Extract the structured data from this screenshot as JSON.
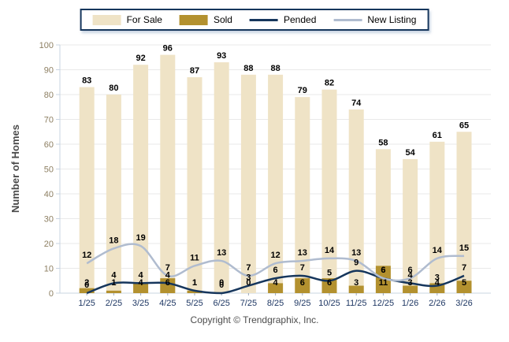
{
  "legend": {
    "items": [
      {
        "label": "For Sale",
        "swatch": "bar",
        "color_key": "for_sale"
      },
      {
        "label": "Sold",
        "swatch": "bar",
        "color_key": "sold"
      },
      {
        "label": "Pended",
        "swatch": "line",
        "color_key": "pended"
      },
      {
        "label": "New Listing",
        "swatch": "line",
        "color_key": "new_listing"
      }
    ]
  },
  "ylabel": "Number of Homes",
  "footer": {
    "copyright": "Copyright © Trendgraphix, Inc."
  },
  "colors": {
    "for_sale": "#efe3c6",
    "sold": "#b3912f",
    "pended": "#16365c",
    "new_listing": "#b0bccf",
    "gridline": "#e9e9e9",
    "axis_line": "#c9d4e2",
    "tick": "#9aa7bb",
    "y_tick_label": "#8d7f62",
    "x_tick_label": "#1f3864",
    "value_label": "#000000"
  },
  "chart_data": {
    "type": "bar",
    "title": "",
    "xlabel": "",
    "ylabel": "Number of Homes",
    "ylim": [
      0,
      100
    ],
    "yticks": [
      0,
      10,
      20,
      30,
      40,
      50,
      60,
      70,
      80,
      90,
      100
    ],
    "grid": true,
    "legend_position": "top",
    "categories": [
      "1/25",
      "2/25",
      "3/25",
      "4/25",
      "5/25",
      "6/25",
      "7/25",
      "8/25",
      "9/25",
      "10/25",
      "11/25",
      "12/25",
      "1/26",
      "2/26",
      "3/26"
    ],
    "series": [
      {
        "name": "For Sale",
        "type": "bar",
        "color_key": "for_sale",
        "values": [
          83,
          80,
          92,
          96,
          87,
          93,
          88,
          88,
          79,
          82,
          74,
          58,
          54,
          61,
          65
        ]
      },
      {
        "name": "Sold",
        "type": "bar",
        "color_key": "sold",
        "values": [
          2,
          1,
          4,
          6,
          1,
          0,
          0,
          4,
          6,
          6,
          3,
          11,
          3,
          4,
          5
        ]
      },
      {
        "name": "Pended",
        "type": "line",
        "color_key": "pended",
        "values": [
          0,
          4,
          4,
          4,
          1,
          0,
          3,
          6,
          7,
          5,
          9,
          6,
          4,
          3,
          7
        ]
      },
      {
        "name": "New Listing",
        "type": "line",
        "color_key": "new_listing",
        "values": [
          12,
          18,
          19,
          7,
          11,
          13,
          7,
          12,
          13,
          14,
          13,
          6,
          6,
          14,
          15
        ]
      }
    ]
  }
}
